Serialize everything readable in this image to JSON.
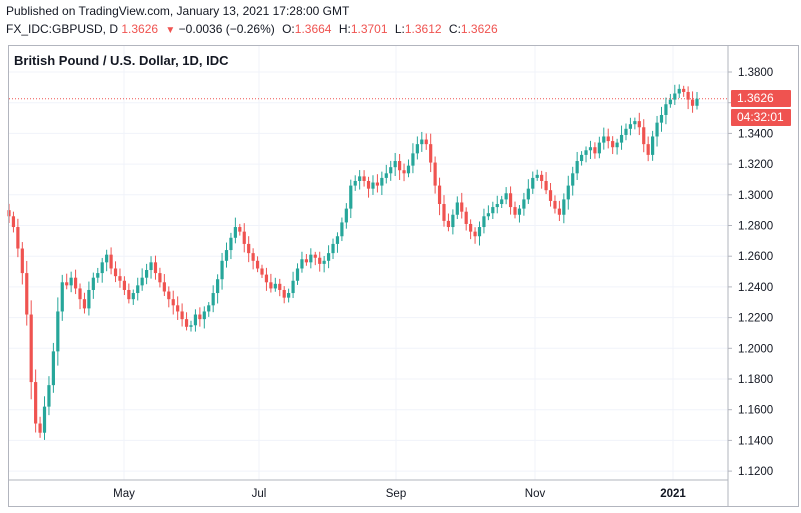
{
  "header": {
    "published": "Published on TradingView.com, January 13, 2021 17:28:00 GMT",
    "symbol": "FX_IDC:GBPUSD, D",
    "last": "1.3626",
    "change": "−0.0036 (−0.26%)",
    "open_label": "O:",
    "open": "1.3664",
    "high_label": "H:",
    "high": "1.3701",
    "low_label": "L:",
    "low": "1.3612",
    "close_label": "C:",
    "close": "1.3626"
  },
  "price_tag": "1.3626",
  "countdown_tag": "04:32:01",
  "colors": {
    "up": "#26a69a",
    "down": "#ef5350",
    "grid": "#f0f3fa",
    "frame": "#b2b5be",
    "price_line": "#ef5350"
  },
  "chart_data": {
    "type": "candlestick",
    "title": "British Pound / U.S. Dollar, 1D, IDC",
    "ylim": [
      1.12,
      1.39
    ],
    "y_ticks": [
      "1.3800",
      "1.3600",
      "1.3400",
      "1.3200",
      "1.3000",
      "1.2800",
      "1.2600",
      "1.2400",
      "1.2200",
      "1.2000",
      "1.1800",
      "1.1600",
      "1.1400",
      "1.1200"
    ],
    "x_ticks": [
      "May",
      "Jul",
      "Sep",
      "Nov",
      "2021"
    ],
    "last_price": 1.3626,
    "grid": true,
    "closes": [
      1.286,
      1.279,
      1.265,
      1.249,
      1.222,
      1.178,
      1.151,
      1.145,
      1.162,
      1.176,
      1.198,
      1.224,
      1.243,
      1.241,
      1.246,
      1.239,
      1.232,
      1.226,
      1.238,
      1.246,
      1.249,
      1.256,
      1.261,
      1.252,
      1.247,
      1.244,
      1.238,
      1.232,
      1.236,
      1.241,
      1.246,
      1.251,
      1.256,
      1.249,
      1.243,
      1.237,
      1.232,
      1.228,
      1.224,
      1.219,
      1.214,
      1.215,
      1.222,
      1.219,
      1.224,
      1.228,
      1.236,
      1.245,
      1.257,
      1.264,
      1.272,
      1.279,
      1.276,
      1.268,
      1.262,
      1.257,
      1.252,
      1.248,
      1.243,
      1.239,
      1.242,
      1.238,
      1.233,
      1.236,
      1.244,
      1.252,
      1.258,
      1.256,
      1.261,
      1.259,
      1.255,
      1.257,
      1.262,
      1.268,
      1.273,
      1.282,
      1.291,
      1.306,
      1.309,
      1.312,
      1.309,
      1.304,
      1.308,
      1.306,
      1.311,
      1.314,
      1.318,
      1.322,
      1.316,
      1.314,
      1.319,
      1.327,
      1.333,
      1.336,
      1.333,
      1.321,
      1.306,
      1.294,
      1.283,
      1.279,
      1.287,
      1.295,
      1.289,
      1.281,
      1.276,
      1.273,
      1.279,
      1.286,
      1.288,
      1.292,
      1.294,
      1.297,
      1.301,
      1.292,
      1.287,
      1.291,
      1.297,
      1.304,
      1.311,
      1.313,
      1.309,
      1.303,
      1.296,
      1.291,
      1.287,
      1.297,
      1.306,
      1.314,
      1.322,
      1.326,
      1.329,
      1.331,
      1.327,
      1.334,
      1.338,
      1.335,
      1.331,
      1.334,
      1.339,
      1.343,
      1.346,
      1.348,
      1.344,
      1.333,
      1.326,
      1.338,
      1.347,
      1.352,
      1.359,
      1.362,
      1.366,
      1.369,
      1.367,
      1.362,
      1.358,
      1.3626
    ]
  }
}
